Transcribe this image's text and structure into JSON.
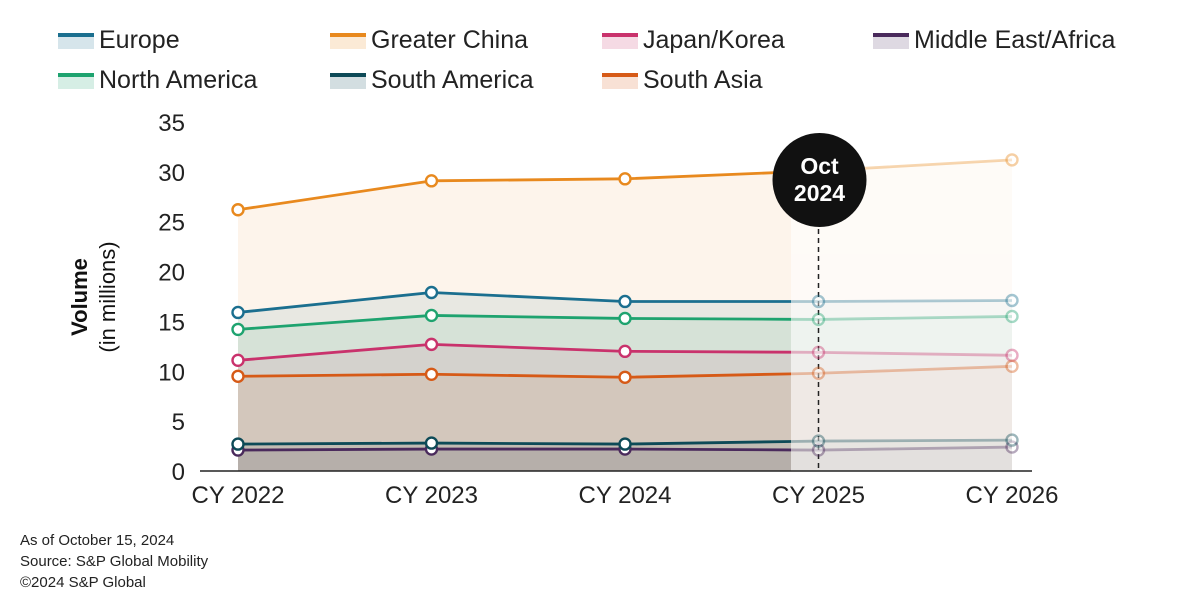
{
  "chart_data": {
    "type": "line",
    "title": "",
    "xlabel": "",
    "ylabel": "Volume",
    "ylabel_sub": "(in millions)",
    "ylim": [
      0,
      35
    ],
    "yticks": [
      0,
      5,
      10,
      15,
      20,
      25,
      30,
      35
    ],
    "categories": [
      "CY 2022",
      "CY 2023",
      "CY 2024",
      "CY 2025",
      "CY 2026"
    ],
    "forecast_start": "CY 2025",
    "marker": {
      "line1": "Oct",
      "line2": "2024",
      "x_value": "CY 2025"
    },
    "series": [
      {
        "name": "Europe",
        "color": "#1b6f8f",
        "values": [
          15.9,
          17.9,
          17.0,
          17.0,
          17.1
        ]
      },
      {
        "name": "Greater China",
        "color": "#e8891e",
        "values": [
          26.2,
          29.1,
          29.3,
          30.1,
          31.2
        ]
      },
      {
        "name": "Japan/Korea",
        "color": "#c9326c",
        "values": [
          11.1,
          12.7,
          12.0,
          11.9,
          11.6
        ]
      },
      {
        "name": "Middle East/Africa",
        "color": "#4a2a5c",
        "values": [
          2.1,
          2.2,
          2.2,
          2.1,
          2.4
        ]
      },
      {
        "name": "North America",
        "color": "#1ea36f",
        "values": [
          14.2,
          15.6,
          15.3,
          15.2,
          15.5
        ]
      },
      {
        "name": "South America",
        "color": "#0d4a57",
        "values": [
          2.7,
          2.8,
          2.7,
          3.0,
          3.1
        ]
      },
      {
        "name": "South Asia",
        "color": "#d65a17",
        "values": [
          9.5,
          9.7,
          9.4,
          9.8,
          10.5
        ]
      }
    ]
  },
  "footer": {
    "as_of": "As of October 15, 2024",
    "source": "Source: S&P Global Mobility",
    "copyright": "©2024 S&P Global"
  }
}
